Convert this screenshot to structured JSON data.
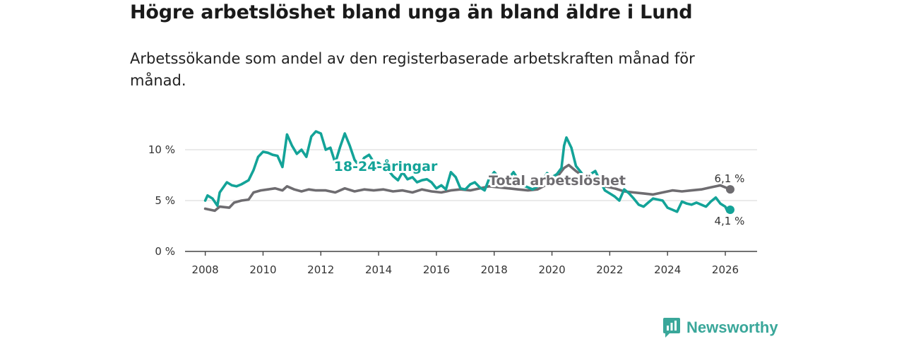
{
  "title": "Högre arbetslöshet bland unga än bland äldre i Lund",
  "subtitle": "Arbetssökande som andel av den registerbaserade arbetskraften månad för månad.",
  "brand": {
    "name": "Newsworthy",
    "logo_icon": "newsworthy-logo-icon"
  },
  "colors": {
    "youth": "#13a398",
    "total": "#6e6c70",
    "grid": "#dddddd",
    "axis": "#444444"
  },
  "chart_data": {
    "type": "line",
    "title": "Högre arbetslöshet bland unga än bland äldre i Lund",
    "xlabel": "",
    "ylabel": "",
    "xlim": [
      2007.3,
      2027.1
    ],
    "ylim": [
      0,
      10
    ],
    "y_ticks": [
      0,
      5,
      10
    ],
    "y_tick_labels": [
      "0 %",
      "5 %",
      "10 %"
    ],
    "x_ticks": [
      2008,
      2010,
      2012,
      2014,
      2016,
      2018,
      2020,
      2022,
      2024,
      2026
    ],
    "x_tick_labels": [
      "2008",
      "2010",
      "2012",
      "2014",
      "2016",
      "2018",
      "2020",
      "2022",
      "2024",
      "2026"
    ],
    "grid": true,
    "series": [
      {
        "name": "Total arbetslöshet",
        "label": "Total arbetslöshet",
        "end_label": "6,1 %",
        "end_value": 6.1,
        "points": [
          [
            2008.0,
            4.2
          ],
          [
            2008.33,
            4.0
          ],
          [
            2008.5,
            4.4
          ],
          [
            2008.83,
            4.3
          ],
          [
            2009.0,
            4.8
          ],
          [
            2009.25,
            5.0
          ],
          [
            2009.5,
            5.1
          ],
          [
            2009.67,
            5.8
          ],
          [
            2009.92,
            6.0
          ],
          [
            2010.17,
            6.1
          ],
          [
            2010.42,
            6.2
          ],
          [
            2010.67,
            6.0
          ],
          [
            2010.83,
            6.4
          ],
          [
            2011.08,
            6.1
          ],
          [
            2011.33,
            5.9
          ],
          [
            2011.58,
            6.1
          ],
          [
            2011.83,
            6.0
          ],
          [
            2012.17,
            6.0
          ],
          [
            2012.5,
            5.8
          ],
          [
            2012.83,
            6.2
          ],
          [
            2013.17,
            5.9
          ],
          [
            2013.5,
            6.1
          ],
          [
            2013.83,
            6.0
          ],
          [
            2014.17,
            6.1
          ],
          [
            2014.5,
            5.9
          ],
          [
            2014.83,
            6.0
          ],
          [
            2015.17,
            5.8
          ],
          [
            2015.5,
            6.1
          ],
          [
            2015.83,
            5.9
          ],
          [
            2016.17,
            5.8
          ],
          [
            2016.5,
            6.0
          ],
          [
            2016.83,
            6.1
          ],
          [
            2017.17,
            6.0
          ],
          [
            2017.5,
            6.2
          ],
          [
            2017.83,
            6.4
          ],
          [
            2018.17,
            6.3
          ],
          [
            2018.5,
            6.2
          ],
          [
            2018.83,
            6.1
          ],
          [
            2019.17,
            6.0
          ],
          [
            2019.5,
            6.1
          ],
          [
            2019.83,
            6.6
          ],
          [
            2020.17,
            7.3
          ],
          [
            2020.42,
            8.2
          ],
          [
            2020.58,
            8.5
          ],
          [
            2020.83,
            7.9
          ],
          [
            2021.17,
            7.2
          ],
          [
            2021.5,
            6.8
          ],
          [
            2021.83,
            6.4
          ],
          [
            2022.17,
            6.2
          ],
          [
            2022.5,
            5.9
          ],
          [
            2022.83,
            5.8
          ],
          [
            2023.17,
            5.7
          ],
          [
            2023.5,
            5.6
          ],
          [
            2023.83,
            5.8
          ],
          [
            2024.17,
            6.0
          ],
          [
            2024.5,
            5.9
          ],
          [
            2024.83,
            6.0
          ],
          [
            2025.17,
            6.1
          ],
          [
            2025.5,
            6.3
          ],
          [
            2025.83,
            6.5
          ],
          [
            2026.17,
            6.1
          ]
        ]
      },
      {
        "name": "18-24-åringar",
        "label": "18-24-åringar",
        "end_label": "4,1 %",
        "end_value": 4.1,
        "points": [
          [
            2008.0,
            5.0
          ],
          [
            2008.08,
            5.5
          ],
          [
            2008.25,
            5.2
          ],
          [
            2008.42,
            4.5
          ],
          [
            2008.5,
            5.8
          ],
          [
            2008.75,
            6.8
          ],
          [
            2008.92,
            6.5
          ],
          [
            2009.08,
            6.4
          ],
          [
            2009.25,
            6.6
          ],
          [
            2009.5,
            7.0
          ],
          [
            2009.67,
            8.0
          ],
          [
            2009.83,
            9.3
          ],
          [
            2010.0,
            9.8
          ],
          [
            2010.17,
            9.7
          ],
          [
            2010.33,
            9.5
          ],
          [
            2010.5,
            9.4
          ],
          [
            2010.67,
            8.3
          ],
          [
            2010.83,
            11.5
          ],
          [
            2011.0,
            10.4
          ],
          [
            2011.17,
            9.6
          ],
          [
            2011.33,
            10.0
          ],
          [
            2011.5,
            9.3
          ],
          [
            2011.67,
            11.3
          ],
          [
            2011.83,
            11.8
          ],
          [
            2012.0,
            11.6
          ],
          [
            2012.17,
            10.0
          ],
          [
            2012.33,
            10.2
          ],
          [
            2012.5,
            8.7
          ],
          [
            2012.67,
            10.3
          ],
          [
            2012.83,
            11.6
          ],
          [
            2013.0,
            10.4
          ],
          [
            2013.17,
            9.0
          ],
          [
            2013.33,
            8.4
          ],
          [
            2013.5,
            9.2
          ],
          [
            2013.67,
            9.5
          ],
          [
            2013.83,
            8.8
          ],
          [
            2014.0,
            8.7
          ],
          [
            2014.17,
            8.2
          ],
          [
            2014.33,
            8.0
          ],
          [
            2014.5,
            7.4
          ],
          [
            2014.67,
            7.0
          ],
          [
            2014.83,
            7.8
          ],
          [
            2015.0,
            7.1
          ],
          [
            2015.17,
            7.3
          ],
          [
            2015.33,
            6.8
          ],
          [
            2015.5,
            7.0
          ],
          [
            2015.67,
            7.1
          ],
          [
            2015.83,
            6.8
          ],
          [
            2016.0,
            6.2
          ],
          [
            2016.17,
            6.5
          ],
          [
            2016.33,
            6.1
          ],
          [
            2016.5,
            7.8
          ],
          [
            2016.67,
            7.3
          ],
          [
            2016.83,
            6.2
          ],
          [
            2017.0,
            6.1
          ],
          [
            2017.17,
            6.6
          ],
          [
            2017.33,
            6.8
          ],
          [
            2017.5,
            6.3
          ],
          [
            2017.67,
            6.0
          ],
          [
            2017.83,
            7.2
          ],
          [
            2018.0,
            7.8
          ],
          [
            2018.17,
            7.3
          ],
          [
            2018.33,
            6.9
          ],
          [
            2018.5,
            7.2
          ],
          [
            2018.67,
            7.8
          ],
          [
            2018.83,
            7.1
          ],
          [
            2019.0,
            6.5
          ],
          [
            2019.17,
            6.3
          ],
          [
            2019.33,
            6.1
          ],
          [
            2019.5,
            6.4
          ],
          [
            2019.67,
            7.0
          ],
          [
            2019.83,
            7.7
          ],
          [
            2020.0,
            7.3
          ],
          [
            2020.17,
            7.6
          ],
          [
            2020.33,
            8.2
          ],
          [
            2020.42,
            10.4
          ],
          [
            2020.5,
            11.2
          ],
          [
            2020.67,
            10.2
          ],
          [
            2020.83,
            8.4
          ],
          [
            2021.0,
            7.8
          ],
          [
            2021.17,
            7.1
          ],
          [
            2021.33,
            7.6
          ],
          [
            2021.5,
            7.9
          ],
          [
            2021.67,
            6.9
          ],
          [
            2021.83,
            6.0
          ],
          [
            2022.0,
            5.7
          ],
          [
            2022.17,
            5.4
          ],
          [
            2022.33,
            5.0
          ],
          [
            2022.5,
            6.1
          ],
          [
            2022.67,
            5.7
          ],
          [
            2022.83,
            5.2
          ],
          [
            2023.0,
            4.6
          ],
          [
            2023.17,
            4.4
          ],
          [
            2023.33,
            4.8
          ],
          [
            2023.5,
            5.2
          ],
          [
            2023.67,
            5.1
          ],
          [
            2023.83,
            5.0
          ],
          [
            2024.0,
            4.3
          ],
          [
            2024.17,
            4.1
          ],
          [
            2024.33,
            3.9
          ],
          [
            2024.5,
            4.9
          ],
          [
            2024.67,
            4.7
          ],
          [
            2024.83,
            4.6
          ],
          [
            2025.0,
            4.8
          ],
          [
            2025.17,
            4.6
          ],
          [
            2025.33,
            4.4
          ],
          [
            2025.5,
            4.9
          ],
          [
            2025.67,
            5.3
          ],
          [
            2025.83,
            4.7
          ],
          [
            2026.0,
            4.4
          ],
          [
            2026.08,
            3.9
          ],
          [
            2026.17,
            4.1
          ]
        ]
      }
    ]
  }
}
